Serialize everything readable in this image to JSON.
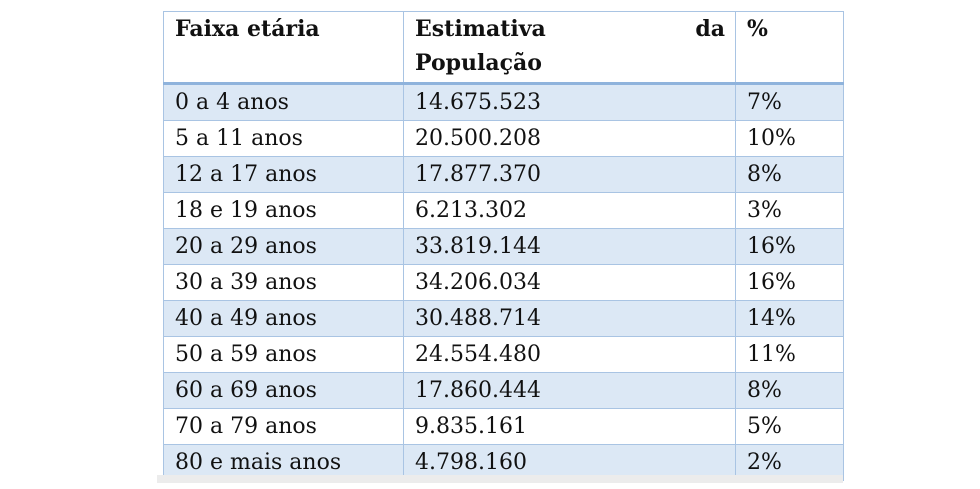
{
  "table": {
    "headers": {
      "age_group": "Faixa etária",
      "estimate_word1": "Estimativa",
      "estimate_word2": "da",
      "estimate_line2": "População",
      "percent": "%"
    },
    "rows": [
      {
        "age": "0 a 4 anos",
        "population": "14.675.523",
        "percent": "7%"
      },
      {
        "age": "5 a 11 anos",
        "population": "20.500.208",
        "percent": "10%"
      },
      {
        "age": "12 a 17 anos",
        "population": "17.877.370",
        "percent": "8%"
      },
      {
        "age": "18 e 19 anos",
        "population": "6.213.302",
        "percent": "3%"
      },
      {
        "age": "20 a 29 anos",
        "population": "33.819.144",
        "percent": "16%"
      },
      {
        "age": "30 a 39 anos",
        "population": "34.206.034",
        "percent": "16%"
      },
      {
        "age": "40 a 49 anos",
        "population": "30.488.714",
        "percent": "14%"
      },
      {
        "age": "50 a 59 anos",
        "population": "24.554.480",
        "percent": "11%"
      },
      {
        "age": "60 a 69 anos",
        "population": "17.860.444",
        "percent": "8%"
      },
      {
        "age": "70 a 79 anos",
        "population": "9.835.161",
        "percent": "5%"
      },
      {
        "age": "80 e mais anos",
        "population": "4.798.160",
        "percent": "2%"
      }
    ]
  },
  "colors": {
    "row_shade": "#dce8f5",
    "border": "#a9c4e3"
  }
}
